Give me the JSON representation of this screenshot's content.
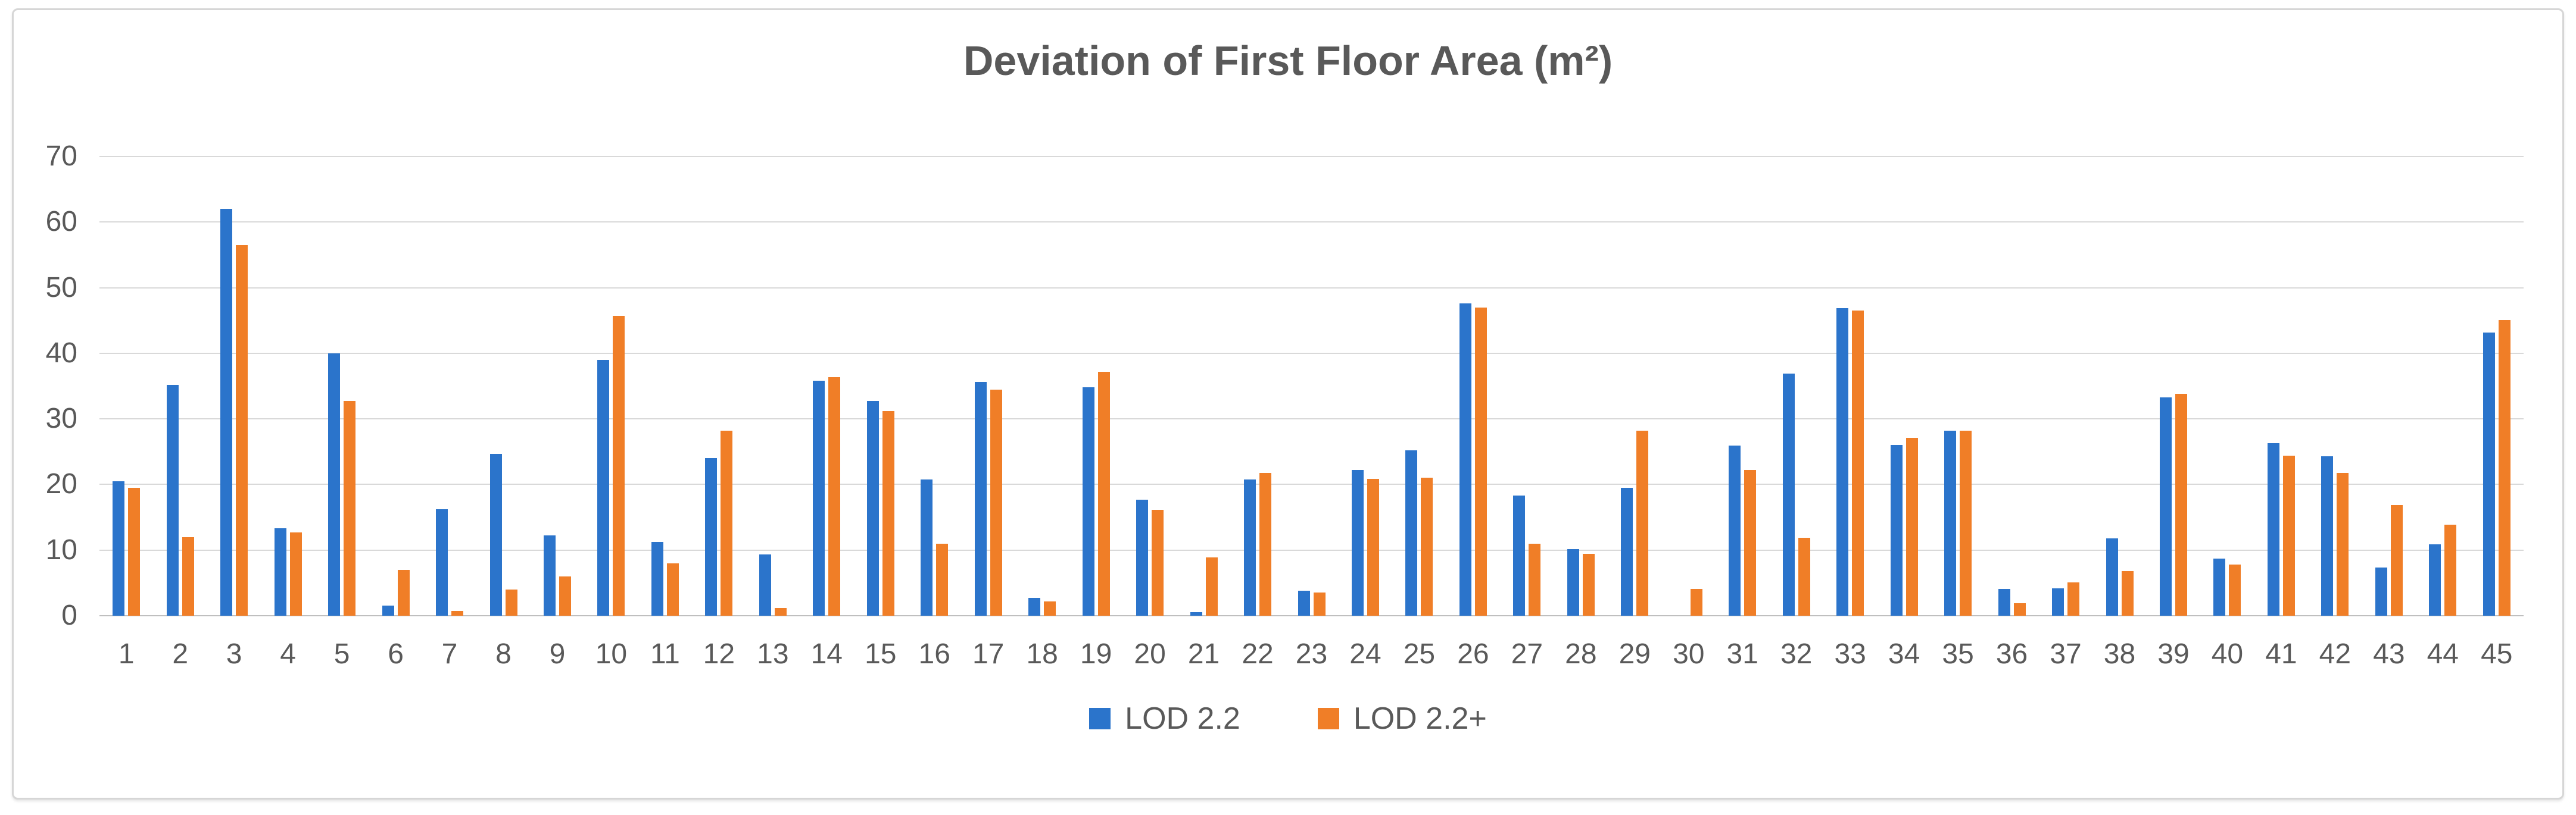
{
  "chart_data": {
    "type": "bar",
    "title": "Deviation of First Floor Area (m²)",
    "xlabel": "",
    "ylabel": "",
    "ylim": [
      0,
      70
    ],
    "yticks": [
      0,
      10,
      20,
      30,
      40,
      50,
      60,
      70
    ],
    "grid": true,
    "legend_position": "bottom",
    "categories": [
      "1",
      "2",
      "3",
      "4",
      "5",
      "6",
      "7",
      "8",
      "9",
      "10",
      "11",
      "12",
      "13",
      "14",
      "15",
      "16",
      "17",
      "18",
      "19",
      "20",
      "21",
      "22",
      "23",
      "24",
      "25",
      "26",
      "27",
      "28",
      "29",
      "30",
      "31",
      "32",
      "33",
      "34",
      "35",
      "36",
      "37",
      "38",
      "39",
      "40",
      "41",
      "42",
      "43",
      "44",
      "45"
    ],
    "series": [
      {
        "name": "LOD 2.2",
        "color": "#2B74CB",
        "values": [
          20.5,
          35.2,
          62,
          13.3,
          40,
          1.5,
          16.2,
          24.7,
          12.2,
          39,
          11.2,
          24,
          9.3,
          35.8,
          32.7,
          20.8,
          35.6,
          2.7,
          34.8,
          17.7,
          0.5,
          20.8,
          3.8,
          22.2,
          25.2,
          47.6,
          18.3,
          10.2,
          19.5,
          0,
          25.9,
          36.9,
          46.9,
          26,
          28.2,
          4.1,
          4.2,
          11.8,
          33.3,
          8.7,
          26.3,
          24.3,
          7.3,
          10.9,
          43.2
        ]
      },
      {
        "name": "LOD 2.2+",
        "color": "#F07E27",
        "values": [
          19.5,
          12,
          56.5,
          12.7,
          32.7,
          7,
          0.7,
          4,
          6,
          45.7,
          8,
          28.2,
          1.2,
          36.4,
          31.2,
          11,
          34.5,
          2.2,
          37.2,
          16.1,
          8.9,
          21.8,
          3.5,
          20.9,
          21,
          47,
          11,
          9.4,
          28.2,
          4.1,
          22.2,
          11.9,
          46.5,
          27.1,
          28.2,
          1.9,
          5.1,
          6.8,
          33.8,
          7.8,
          24.4,
          21.8,
          16.9,
          13.9,
          45.1
        ]
      }
    ]
  }
}
